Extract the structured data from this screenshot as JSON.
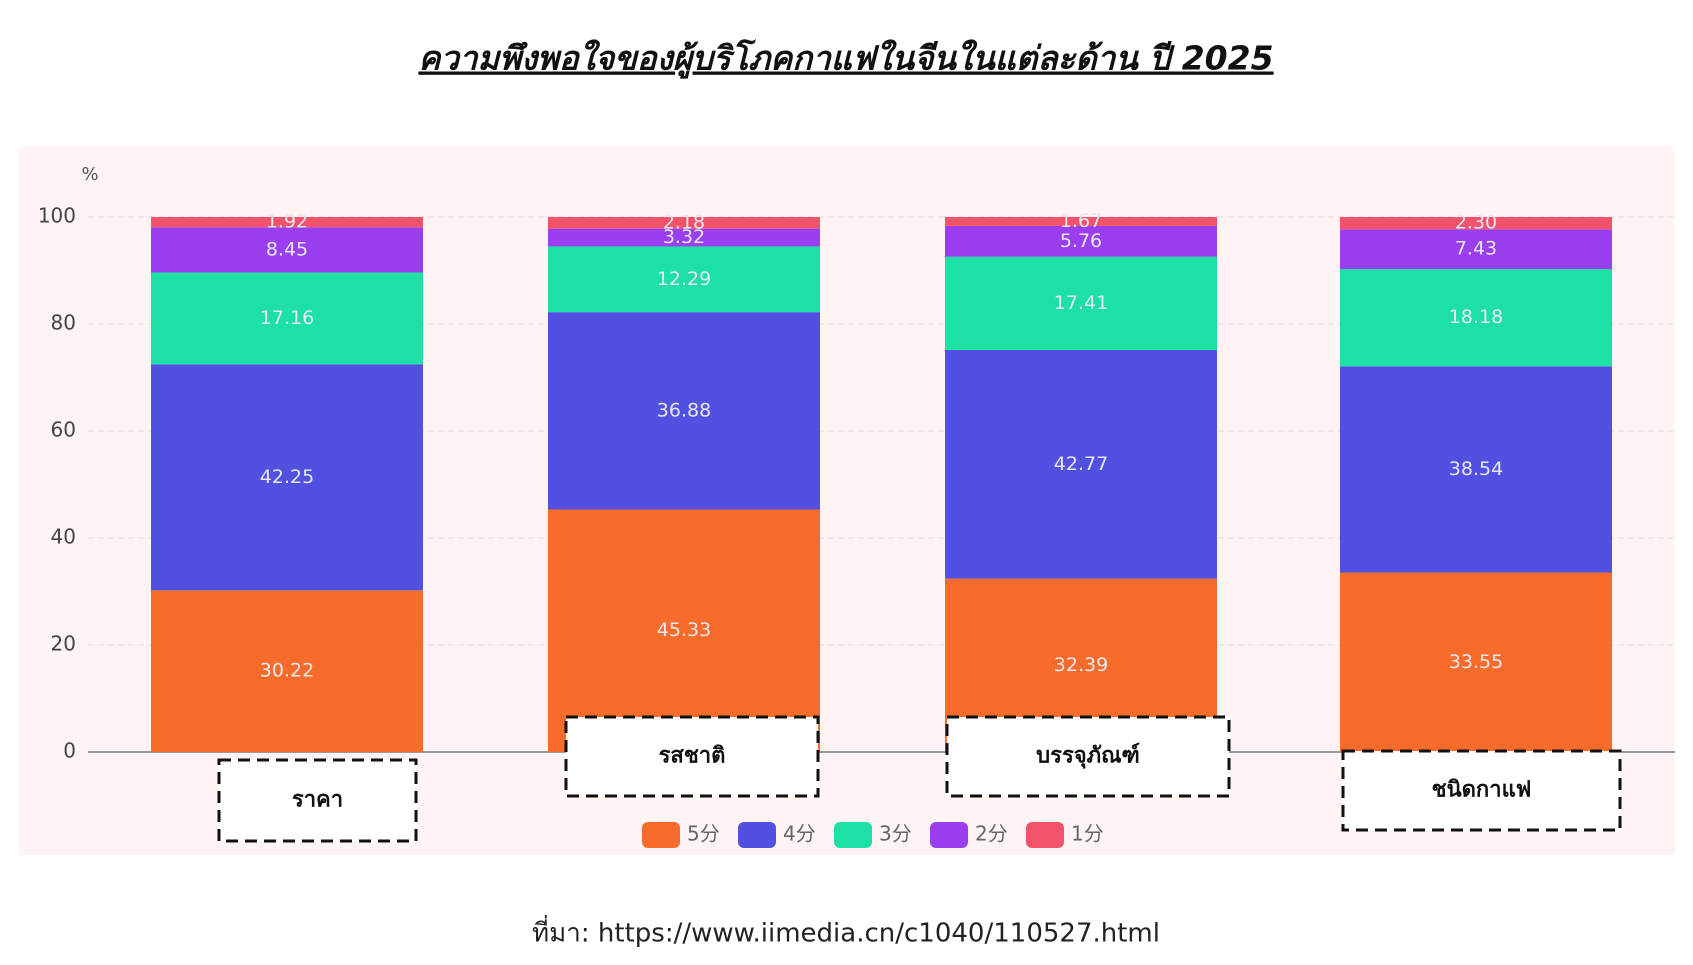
{
  "chart_data": {
    "type": "stacked_bar",
    "title": "ความพึงพอใจของผู้บริโภคกาแฟในจีนในแต่ละด้าน ปี 2025",
    "y_label": "%",
    "source": "ที่มา:  https://www.iimedia.cn/c1040/110527.html",
    "categories": [
      "ราคา",
      "รสชาติ",
      "บรรจุภัณฑ์",
      "ชนิดกาแฟ"
    ],
    "series": [
      {
        "name": "5分",
        "color": "#f76b2b",
        "values": [
          30.22,
          45.33,
          32.39,
          33.55
        ]
      },
      {
        "name": "4分",
        "color": "#5150e0",
        "values": [
          42.25,
          36.88,
          42.77,
          38.54
        ]
      },
      {
        "name": "3分",
        "color": "#1de0a6",
        "values": [
          17.16,
          12.29,
          17.41,
          18.18
        ]
      },
      {
        "name": "2分",
        "color": "#9a3ef0",
        "values": [
          8.45,
          3.32,
          5.76,
          7.43
        ]
      },
      {
        "name": "1分",
        "color": "#f2536b",
        "values": [
          1.92,
          2.18,
          1.67,
          2.3
        ],
        "value_labels": [
          "1.92",
          "2.18",
          "1.67",
          "2.30"
        ]
      }
    ],
    "ylim": [
      0,
      100
    ],
    "yticks": [
      0,
      20,
      40,
      60,
      80,
      100
    ],
    "grid": true
  }
}
